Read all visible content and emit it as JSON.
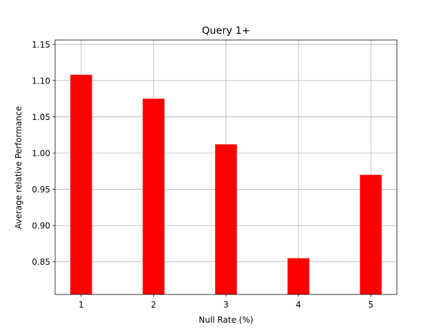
{
  "chart_data": {
    "type": "bar",
    "title": "Query 1+",
    "xlabel": "Null Rate (%)",
    "ylabel": "Average relative Performance",
    "categories": [
      "1",
      "2",
      "3",
      "4",
      "5"
    ],
    "values": [
      1.108,
      1.075,
      1.012,
      0.855,
      0.97
    ],
    "ylim": [
      0.805,
      1.156
    ],
    "yticks": [
      0.85,
      0.9,
      0.95,
      1.0,
      1.05,
      1.1,
      1.15
    ],
    "ytick_labels": [
      "0.85",
      "0.90",
      "0.95",
      "1.00",
      "1.05",
      "1.10",
      "1.15"
    ],
    "grid": true,
    "bar_color": "#ff0000"
  }
}
